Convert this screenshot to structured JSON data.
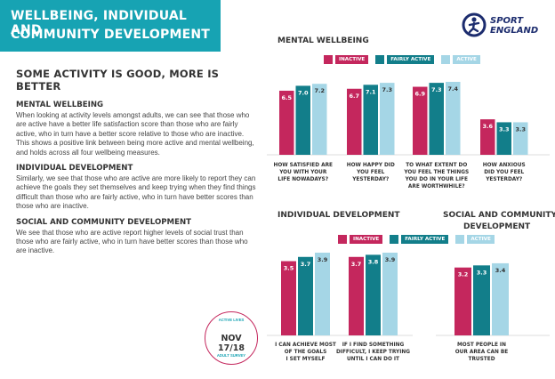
{
  "header": {
    "title_line1": "WELLBEING, INDIVIDUAL AND",
    "title_line2": "COMMUNITY DEVELOPMENT"
  },
  "logo": {
    "line1": "SPORT",
    "line2": "ENGLAND",
    "icon": "sport-england-figure-icon"
  },
  "left": {
    "heading": "SOME ACTIVITY IS GOOD, MORE IS BETTER",
    "sections": [
      {
        "title": "MENTAL WELLBEING",
        "body": "When looking at activity levels amongst adults, we can see that those who are active have a better life satisfaction score than those who are fairly active, who in turn have a better score relative to those who are inactive. This shows a positive link between being more active and mental wellbeing, and holds across all four wellbeing measures."
      },
      {
        "title": "INDIVIDUAL DEVELOPMENT",
        "body": "Similarly, we see that those who are active are more likely to report they can achieve the goals they set themselves and keep trying when they find things difficult than those who are fairly active, who in turn have better scores than those who are inactive."
      },
      {
        "title": "SOCIAL AND COMMUNITY DEVELOPMENT",
        "body": "We see that those who are active report higher levels of social trust than those who are fairly active, who in turn have better scores than those who are inactive."
      }
    ]
  },
  "badge": {
    "top": "ACTIVE LIVES",
    "date": "NOV 17/18",
    "bottom": "ADULT SURVEY"
  },
  "colors": {
    "inactive": "#c4275d",
    "fairly_active": "#127e8a",
    "active": "#a5d6e6",
    "header": "#17a3b3",
    "logo": "#1c2c6e"
  },
  "legend": [
    "INACTIVE",
    "FAIRLY ACTIVE",
    "ACTIVE"
  ],
  "chart_data": [
    {
      "type": "bar",
      "title": "MENTAL WELLBEING",
      "categories": [
        [
          "HOW SATISFIED ARE",
          "YOU WITH YOUR",
          "LIFE NOWADAYS?"
        ],
        [
          "HOW HAPPY DID",
          "YOU FEEL",
          "YESTERDAY?"
        ],
        [
          "TO WHAT EXTENT DO",
          "YOU FEEL THE THINGS",
          "YOU DO IN YOUR LIFE",
          "ARE WORTHWHILE?"
        ],
        [
          "HOW ANXIOUS",
          "DID YOU FEEL",
          "YESTERDAY?"
        ]
      ],
      "series": [
        {
          "name": "INACTIVE",
          "values": [
            6.5,
            6.7,
            6.9,
            3.6
          ]
        },
        {
          "name": "FAIRLY ACTIVE",
          "values": [
            7.0,
            7.1,
            7.3,
            3.3
          ]
        },
        {
          "name": "ACTIVE",
          "values": [
            7.2,
            7.3,
            7.4,
            3.3
          ]
        }
      ],
      "ylim": [
        0,
        7.4
      ]
    },
    {
      "type": "bar",
      "title": "INDIVIDUAL DEVELOPMENT",
      "categories": [
        [
          "I CAN ACHIEVE MOST",
          "OF THE GOALS",
          "I SET MYSELF"
        ],
        [
          "IF I FIND SOMETHING",
          "DIFFICULT, I KEEP TRYING",
          "UNTIL I CAN DO IT"
        ]
      ],
      "series": [
        {
          "name": "INACTIVE",
          "values": [
            3.5,
            3.7
          ]
        },
        {
          "name": "FAIRLY ACTIVE",
          "values": [
            3.7,
            3.8
          ]
        },
        {
          "name": "ACTIVE",
          "values": [
            3.9,
            3.9
          ]
        }
      ],
      "ylim": [
        0,
        3.9
      ]
    },
    {
      "type": "bar",
      "title": [
        "SOCIAL AND COMMUNITY",
        "DEVELOPMENT"
      ],
      "categories": [
        [
          "MOST PEOPLE IN",
          "OUR AREA CAN BE",
          "TRUSTED"
        ]
      ],
      "series": [
        {
          "name": "INACTIVE",
          "values": [
            3.2
          ]
        },
        {
          "name": "FAIRLY ACTIVE",
          "values": [
            3.3
          ]
        },
        {
          "name": "ACTIVE",
          "values": [
            3.4
          ]
        }
      ],
      "ylim": [
        0,
        3.9
      ]
    }
  ]
}
